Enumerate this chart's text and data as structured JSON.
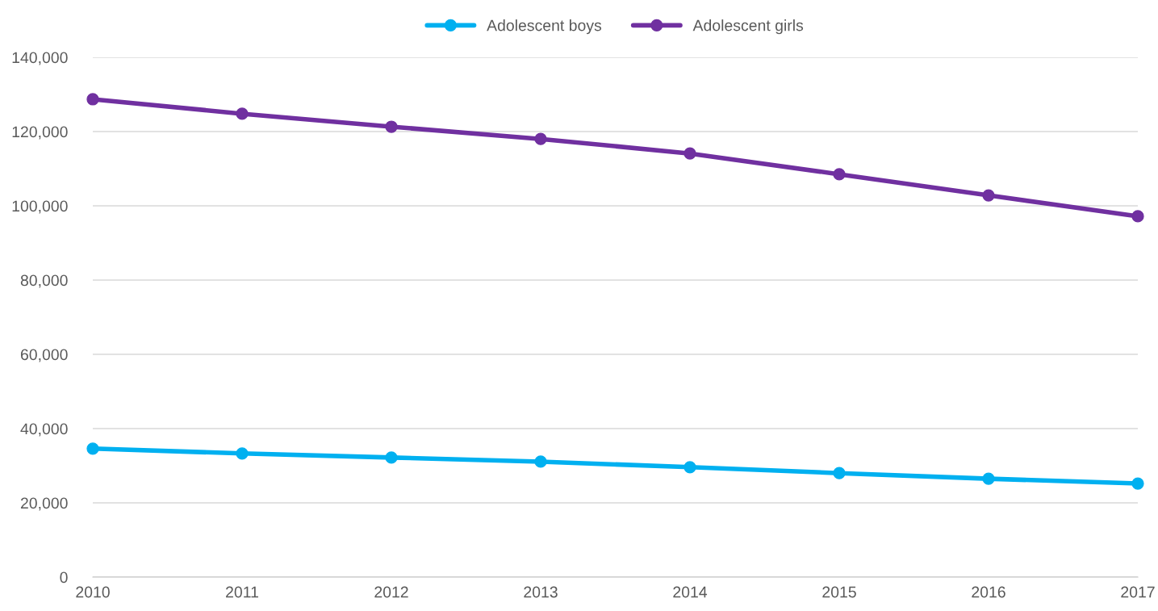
{
  "chart_data": {
    "type": "line",
    "x": [
      2010,
      2011,
      2012,
      2013,
      2014,
      2015,
      2016,
      2017
    ],
    "series": [
      {
        "name": "Adolescent boys",
        "color": "#00b0f0",
        "values": [
          34600,
          33300,
          32200,
          31100,
          29600,
          28000,
          26500,
          25200
        ]
      },
      {
        "name": "Adolescent girls",
        "color": "#7030a0",
        "values": [
          128700,
          124800,
          121300,
          118000,
          114100,
          108500,
          102800,
          97200
        ]
      }
    ],
    "xlim": [
      2010,
      2017
    ],
    "xticks": [
      2010,
      2011,
      2012,
      2013,
      2014,
      2015,
      2016,
      2017
    ],
    "ylim": [
      0,
      140000
    ],
    "yticks": [
      {
        "value": 0,
        "label": "0"
      },
      {
        "value": 20000,
        "label": "20,000"
      },
      {
        "value": 40000,
        "label": "40,000"
      },
      {
        "value": 60000,
        "label": "60,000"
      },
      {
        "value": 80000,
        "label": "80,000"
      },
      {
        "value": 100000,
        "label": "100,000"
      },
      {
        "value": 120000,
        "label": "120,000"
      },
      {
        "value": 140000,
        "label": "140,000"
      }
    ],
    "grid": "y",
    "legend": "top",
    "marker": "circle",
    "line_style": "solid"
  }
}
